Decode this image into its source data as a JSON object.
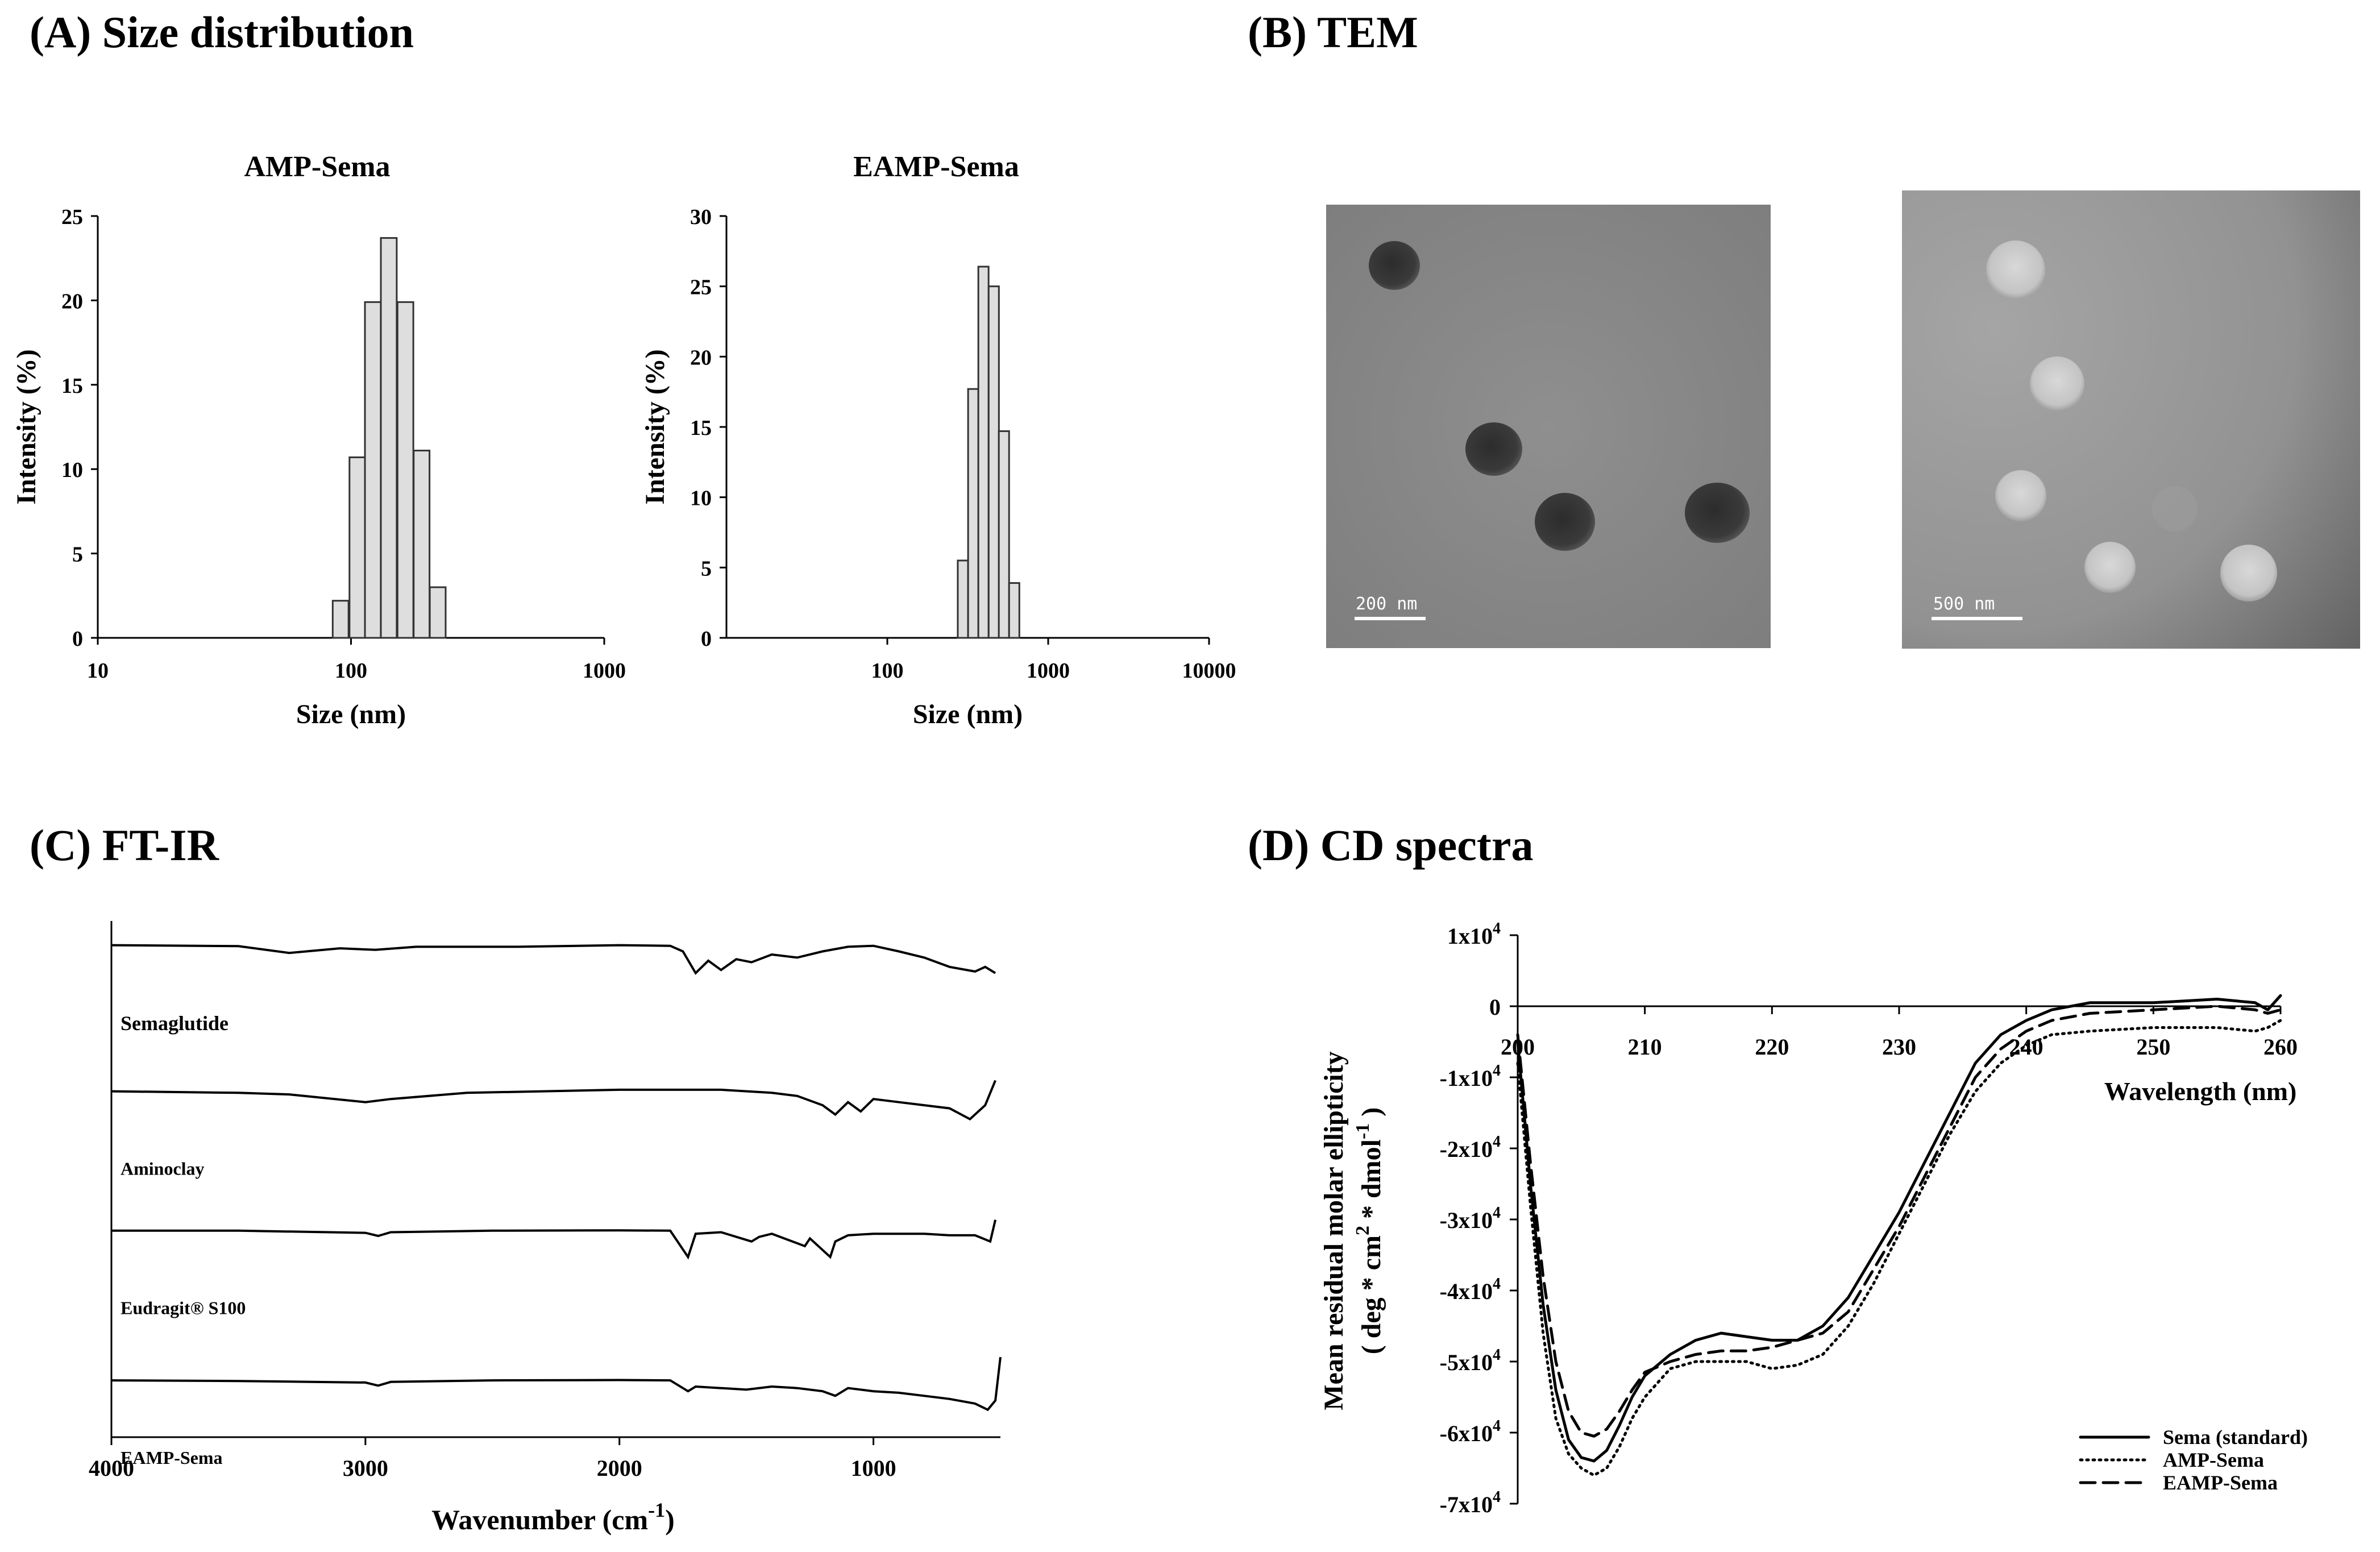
{
  "panels": {
    "a_title": "(A) Size distribution",
    "b_title": "(B) TEM",
    "c_title": "(C) FT-IR",
    "d_title": "(D) CD spectra"
  },
  "tem": {
    "left_scale_label": "200 nm",
    "right_scale_label": "500 nm"
  },
  "colors": {
    "bar_fill": "#dedede",
    "bar_stroke": "#333333",
    "tem_left_bg": "#8a8a8a",
    "tem_right_bg": "#9a9a9a"
  },
  "chart_data": [
    {
      "id": "amp-size",
      "type": "bar",
      "title": "AMP-Sema",
      "xlabel": "Size (nm)",
      "ylabel": "Intensity (%)",
      "xscale": "log",
      "xlim": [
        10,
        1000
      ],
      "ylim": [
        0,
        25
      ],
      "xticks": [
        "10",
        "100",
        "1000"
      ],
      "yticks": [
        "0",
        "5",
        "10",
        "15",
        "20",
        "25"
      ],
      "sizes_nm": [
        91,
        106,
        122,
        141,
        164,
        190,
        220
      ],
      "values": [
        2.2,
        10.7,
        19.9,
        23.7,
        19.9,
        11.1,
        3.0
      ]
    },
    {
      "id": "eamp-size",
      "type": "bar",
      "title": "EAMP-Sema",
      "xlabel": "Size (nm)",
      "ylabel": "Intensity (%)",
      "xscale": "log",
      "xlim": [
        10,
        10000
      ],
      "ylim": [
        0,
        30
      ],
      "xticks": [
        "100",
        "1000",
        "10000"
      ],
      "yticks": [
        "0",
        "5",
        "10",
        "15",
        "20",
        "25",
        "30"
      ],
      "sizes_nm": [
        295,
        342,
        396,
        459,
        531,
        615
      ],
      "values": [
        5.5,
        17.7,
        26.4,
        25.0,
        14.7,
        3.9
      ]
    },
    {
      "id": "ftir",
      "type": "line",
      "xlabel": "Wavenumber (cm",
      "xlabel_sup": "-1",
      "xlabel_end": ")",
      "xlim": [
        4000,
        500
      ],
      "xticks": [
        "4000",
        "3000",
        "2000",
        "1000"
      ],
      "xtick_values": [
        4000,
        3000,
        2000,
        1000
      ],
      "series": [
        {
          "name": "Semaglutide",
          "baseline": 0.92,
          "amp": 0.06,
          "x": [
            4000,
            3500,
            3300,
            3100,
            2960,
            2800,
            2400,
            2000,
            1800,
            1750,
            1700,
            1650,
            1600,
            1540,
            1480,
            1400,
            1300,
            1200,
            1100,
            1000,
            900,
            800,
            700,
            600,
            560,
            520
          ],
          "y": [
            1.0,
            0.97,
            0.75,
            0.9,
            0.85,
            0.95,
            0.95,
            1.0,
            0.98,
            0.8,
            0.1,
            0.5,
            0.2,
            0.55,
            0.45,
            0.7,
            0.6,
            0.8,
            0.95,
            0.98,
            0.8,
            0.6,
            0.3,
            0.15,
            0.3,
            0.1
          ]
        },
        {
          "name": "Aminoclay",
          "baseline": 0.64,
          "amp": 0.06,
          "x": [
            4000,
            3500,
            3300,
            3000,
            2900,
            2600,
            2000,
            1600,
            1400,
            1300,
            1200,
            1150,
            1100,
            1050,
            1000,
            900,
            800,
            700,
            620,
            560,
            520
          ],
          "y": [
            0.95,
            0.9,
            0.85,
            0.6,
            0.7,
            0.9,
            1.0,
            1.0,
            0.9,
            0.8,
            0.5,
            0.2,
            0.6,
            0.3,
            0.7,
            0.6,
            0.5,
            0.4,
            0.05,
            0.5,
            1.3
          ]
        },
        {
          "name": "Eudragit® S100",
          "baseline": 0.37,
          "amp": 0.06,
          "x": [
            4000,
            3500,
            3000,
            2950,
            2900,
            2500,
            2000,
            1800,
            1730,
            1700,
            1600,
            1480,
            1450,
            1400,
            1270,
            1250,
            1170,
            1150,
            1100,
            1000,
            900,
            800,
            700,
            600,
            540,
            520
          ],
          "y": [
            0.95,
            0.95,
            0.88,
            0.78,
            0.9,
            0.95,
            0.96,
            0.95,
            0.1,
            0.85,
            0.9,
            0.6,
            0.75,
            0.85,
            0.45,
            0.7,
            0.1,
            0.6,
            0.8,
            0.85,
            0.85,
            0.85,
            0.8,
            0.8,
            0.6,
            1.3
          ]
        },
        {
          "name": "EAMP-Sema",
          "baseline": 0.08,
          "amp": 0.06,
          "x": [
            4000,
            3500,
            3000,
            2950,
            2900,
            2500,
            2000,
            1800,
            1730,
            1700,
            1600,
            1500,
            1400,
            1300,
            1200,
            1150,
            1100,
            1000,
            900,
            800,
            700,
            600,
            550,
            520,
            500
          ],
          "y": [
            0.95,
            0.93,
            0.88,
            0.78,
            0.9,
            0.95,
            0.96,
            0.95,
            0.6,
            0.75,
            0.7,
            0.65,
            0.75,
            0.7,
            0.6,
            0.45,
            0.7,
            0.6,
            0.55,
            0.45,
            0.35,
            0.2,
            0.0,
            0.3,
            1.7
          ]
        }
      ]
    },
    {
      "id": "cd",
      "type": "line",
      "xlabel": "Wavelength (nm)",
      "ylabel_line1": "Mean residual molar ellipticity",
      "ylabel_line2": "( deg * cm",
      "ylabel_sup1": "2",
      "ylabel_mid": " * dmol",
      "ylabel_sup2": "-1",
      "ylabel_end": " )",
      "xlim": [
        200,
        260
      ],
      "ylim": [
        -70000,
        10000
      ],
      "xticks": [
        "200",
        "210",
        "220",
        "230",
        "240",
        "250",
        "260"
      ],
      "xtick_values": [
        200,
        210,
        220,
        230,
        240,
        250,
        260
      ],
      "yticks": [
        {
          "value": 10000,
          "base": "1x10",
          "exp": "4"
        },
        {
          "value": 0,
          "base": "0",
          "exp": ""
        },
        {
          "value": -10000,
          "base": "-1x10",
          "exp": "4"
        },
        {
          "value": -20000,
          "base": "-2x10",
          "exp": "4"
        },
        {
          "value": -30000,
          "base": "-3x10",
          "exp": "4"
        },
        {
          "value": -40000,
          "base": "-4x10",
          "exp": "4"
        },
        {
          "value": -50000,
          "base": "-5x10",
          "exp": "4"
        },
        {
          "value": -60000,
          "base": "-6x10",
          "exp": "4"
        },
        {
          "value": -70000,
          "base": "-7x10",
          "exp": "4"
        }
      ],
      "series": [
        {
          "name": "Sema (standard)",
          "dash": "solid",
          "x": [
            200,
            201,
            202,
            203,
            204,
            205,
            206,
            207,
            208,
            209,
            210,
            212,
            214,
            216,
            218,
            220,
            222,
            224,
            226,
            228,
            230,
            232,
            234,
            236,
            238,
            240,
            242,
            245,
            250,
            255,
            258,
            259,
            260
          ],
          "y": [
            -5000,
            -25000,
            -42000,
            -54000,
            -61000,
            -63500,
            -64000,
            -62500,
            -59000,
            -55000,
            -52000,
            -49000,
            -47000,
            -46000,
            -46500,
            -47000,
            -47000,
            -45000,
            -41000,
            -35000,
            -29000,
            -22000,
            -15000,
            -8000,
            -4000,
            -2000,
            -500,
            500,
            500,
            1000,
            500,
            -500,
            1500
          ]
        },
        {
          "name": "AMP-Sema",
          "dash": "dot",
          "x": [
            200,
            201,
            202,
            203,
            204,
            205,
            206,
            207,
            208,
            209,
            210,
            212,
            214,
            216,
            218,
            220,
            222,
            224,
            226,
            228,
            230,
            232,
            234,
            236,
            238,
            240,
            242,
            245,
            250,
            255,
            258,
            259,
            260
          ],
          "y": [
            -8000,
            -28000,
            -46000,
            -58000,
            -63000,
            -65000,
            -66000,
            -65000,
            -62000,
            -58000,
            -55000,
            -51000,
            -50000,
            -50000,
            -50000,
            -51000,
            -50500,
            -49000,
            -45000,
            -39000,
            -32000,
            -25000,
            -18000,
            -12000,
            -8000,
            -5500,
            -4000,
            -3500,
            -3000,
            -3000,
            -3500,
            -3000,
            -2000
          ]
        },
        {
          "name": "EAMP-Sema",
          "dash": "dash",
          "x": [
            200,
            201,
            202,
            203,
            204,
            205,
            206,
            207,
            208,
            209,
            210,
            212,
            214,
            216,
            218,
            220,
            222,
            224,
            226,
            228,
            230,
            232,
            234,
            236,
            238,
            240,
            242,
            245,
            250,
            255,
            258,
            259,
            260
          ],
          "y": [
            -4000,
            -22000,
            -38000,
            -50000,
            -57000,
            -60000,
            -60500,
            -59500,
            -57000,
            -54000,
            -51500,
            -50000,
            -49000,
            -48500,
            -48500,
            -48000,
            -47000,
            -46000,
            -43000,
            -37000,
            -31000,
            -24000,
            -17000,
            -10000,
            -6000,
            -3500,
            -2000,
            -1000,
            -500,
            0,
            -500,
            -1000,
            -500
          ]
        }
      ],
      "legend_position": "bottom-right"
    }
  ]
}
